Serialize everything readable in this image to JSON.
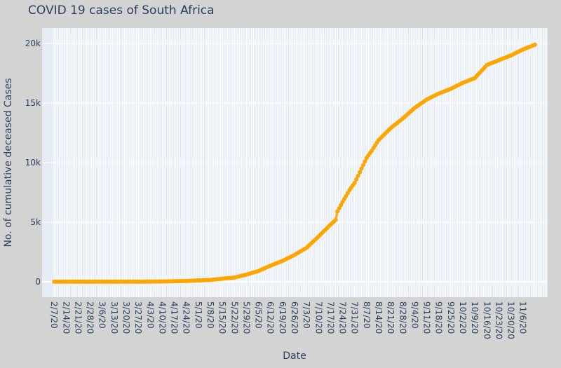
{
  "chart_data": {
    "type": "scatter",
    "mode": "lines+markers",
    "title": "COVID 19 cases of South Africa",
    "xlabel": "Date",
    "ylabel": "No. of cumulative deceased Cases",
    "x_start": "2020-02-07",
    "x_end": "2020-11-13",
    "xlim": [
      "2020-01-31",
      "2020-11-20"
    ],
    "ylim": [
      -1300,
      21300
    ],
    "x_tick_labels": [
      "2/7/20",
      "2/14/20",
      "2/21/20",
      "2/28/20",
      "3/6/20",
      "3/13/20",
      "3/20/20",
      "3/27/20",
      "4/3/20",
      "4/10/20",
      "4/17/20",
      "4/24/20",
      "5/1/20",
      "5/8/20",
      "5/15/20",
      "5/22/20",
      "5/29/20",
      "6/5/20",
      "6/12/20",
      "6/19/20",
      "6/26/20",
      "7/3/20",
      "7/10/20",
      "7/17/20",
      "7/24/20",
      "7/31/20",
      "8/7/20",
      "8/14/20",
      "8/21/20",
      "8/28/20",
      "9/4/20",
      "9/11/20",
      "9/18/20",
      "9/25/20",
      "10/2/20",
      "10/9/20",
      "10/16/20",
      "10/23/20",
      "10/30/20",
      "11/6/20"
    ],
    "y_ticks": [
      0,
      5000,
      10000,
      15000,
      20000
    ],
    "y_tick_labels": [
      "0",
      "5k",
      "10k",
      "15k",
      "20k"
    ],
    "series": [
      {
        "color": "#ffa500",
        "points": [
          [
            "2020-02-07",
            0
          ],
          [
            "2020-03-27",
            2
          ],
          [
            "2020-04-10",
            20
          ],
          [
            "2020-04-24",
            60
          ],
          [
            "2020-05-01",
            110
          ],
          [
            "2020-05-08",
            150
          ],
          [
            "2020-05-15",
            250
          ],
          [
            "2020-05-22",
            350
          ],
          [
            "2020-05-29",
            600
          ],
          [
            "2020-06-05",
            900
          ],
          [
            "2020-06-12",
            1350
          ],
          [
            "2020-06-19",
            1750
          ],
          [
            "2020-06-26",
            2250
          ],
          [
            "2020-07-03",
            2850
          ],
          [
            "2020-07-10",
            3800
          ],
          [
            "2020-07-17",
            4800
          ],
          [
            "2020-07-20",
            5200
          ],
          [
            "2020-07-21",
            5900
          ],
          [
            "2020-07-24",
            6700
          ],
          [
            "2020-07-28",
            7700
          ],
          [
            "2020-07-31",
            8300
          ],
          [
            "2020-08-03",
            9200
          ],
          [
            "2020-08-07",
            10400
          ],
          [
            "2020-08-10",
            11000
          ],
          [
            "2020-08-14",
            11900
          ],
          [
            "2020-08-21",
            12900
          ],
          [
            "2020-08-28",
            13700
          ],
          [
            "2020-09-04",
            14600
          ],
          [
            "2020-09-11",
            15300
          ],
          [
            "2020-09-18",
            15800
          ],
          [
            "2020-09-25",
            16200
          ],
          [
            "2020-10-02",
            16700
          ],
          [
            "2020-10-09",
            17100
          ],
          [
            "2020-10-16",
            18200
          ],
          [
            "2020-10-23",
            18600
          ],
          [
            "2020-10-30",
            19000
          ],
          [
            "2020-11-06",
            19500
          ],
          [
            "2020-11-13",
            19900
          ]
        ]
      }
    ]
  }
}
